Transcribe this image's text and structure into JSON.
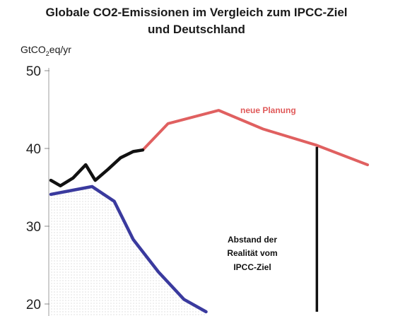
{
  "chart_data": {
    "type": "line",
    "title_line1": "Globale CO2-Emissionen im Vergleich zum IPCC-Ziel",
    "title_line2": "und Deutschland",
    "ylabel_main": "GtCO",
    "ylabel_sub": "2",
    "ylabel_tail": "eq/yr",
    "ylim": [
      20,
      50
    ],
    "yticks": [
      {
        "value": 50,
        "label": "50"
      },
      {
        "value": 40,
        "label": "40"
      },
      {
        "value": 30,
        "label": "30"
      },
      {
        "value": 20,
        "label": "20"
      }
    ],
    "grid": false,
    "series": [
      {
        "name": "neue Planung",
        "color": "#e06060",
        "points": [
          [
            0.29,
            39.8
          ],
          [
            0.37,
            43.2
          ],
          [
            0.53,
            44.9
          ],
          [
            0.67,
            42.5
          ],
          [
            0.84,
            40.4
          ],
          [
            1.0,
            37.9
          ]
        ]
      },
      {
        "color": "#111111",
        "points": [
          [
            0.0,
            35.9
          ],
          [
            0.03,
            35.2
          ],
          [
            0.07,
            36.2
          ],
          [
            0.11,
            37.9
          ],
          [
            0.14,
            35.9
          ],
          [
            0.18,
            37.3
          ],
          [
            0.22,
            38.8
          ],
          [
            0.26,
            39.6
          ],
          [
            0.29,
            39.8
          ]
        ]
      },
      {
        "color": "#3a3a9e",
        "points": [
          [
            0.0,
            34.1
          ],
          [
            0.13,
            35.1
          ],
          [
            0.2,
            33.2
          ],
          [
            0.26,
            28.3
          ],
          [
            0.34,
            24.1
          ],
          [
            0.42,
            20.6
          ],
          [
            0.49,
            19.0
          ]
        ]
      }
    ],
    "gap_marker": {
      "x": 0.84,
      "from": 40.2,
      "to": 19.0,
      "color": "#111111"
    },
    "annotations": {
      "neue_planung": "neue Planung",
      "gap_line1": "Abstand der",
      "gap_line2": "Realität vom",
      "gap_line3": "IPCC-Ziel"
    }
  }
}
